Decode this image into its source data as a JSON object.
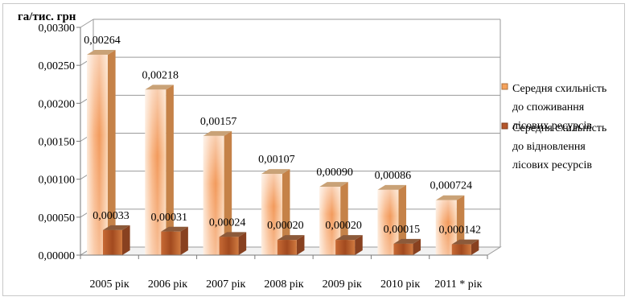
{
  "chart_data": {
    "type": "bar",
    "y_unit_label": "га/тис. грн",
    "categories": [
      "2005 рік",
      "2006 рік",
      "2007 рік",
      "2008 рік",
      "2009 рік",
      "2010 рік",
      "2011 * рік"
    ],
    "series": [
      {
        "name": "Середня схильність до споживання лісових ресурсів",
        "values": [
          0.00264,
          0.00218,
          0.00157,
          0.00107,
          0.0009,
          0.00086,
          0.000724
        ],
        "labels": [
          "0,00264",
          "0,00218",
          "0,00157",
          "0,00107",
          "0,00090",
          "0,00086",
          "0,000724"
        ],
        "color": "#f6a25a"
      },
      {
        "name": "Середня схильність до відновлення лісових ресурсів",
        "values": [
          0.00033,
          0.00031,
          0.00024,
          0.0002,
          0.0002,
          0.00015,
          0.000142
        ],
        "labels": [
          "0,00033",
          "0,00031",
          "0,00024",
          "0,00020",
          "0,00020",
          "0,00015",
          "0,000142"
        ],
        "color": "#b5562a"
      }
    ],
    "ylim": [
      0,
      0.003
    ],
    "yticks": [
      "0,00000",
      "0,00050",
      "0,00100",
      "0,00150",
      "0,00200",
      "0,00250",
      "0,00300"
    ],
    "grid": true,
    "legend_position": "right"
  },
  "legend": [
    {
      "lines": [
        "Середня схильність",
        "до        споживання",
        "лісових ресурсів"
      ]
    },
    {
      "lines": [
        "Середня схильність",
        "до        відновлення",
        "лісових ресурсів"
      ]
    }
  ]
}
